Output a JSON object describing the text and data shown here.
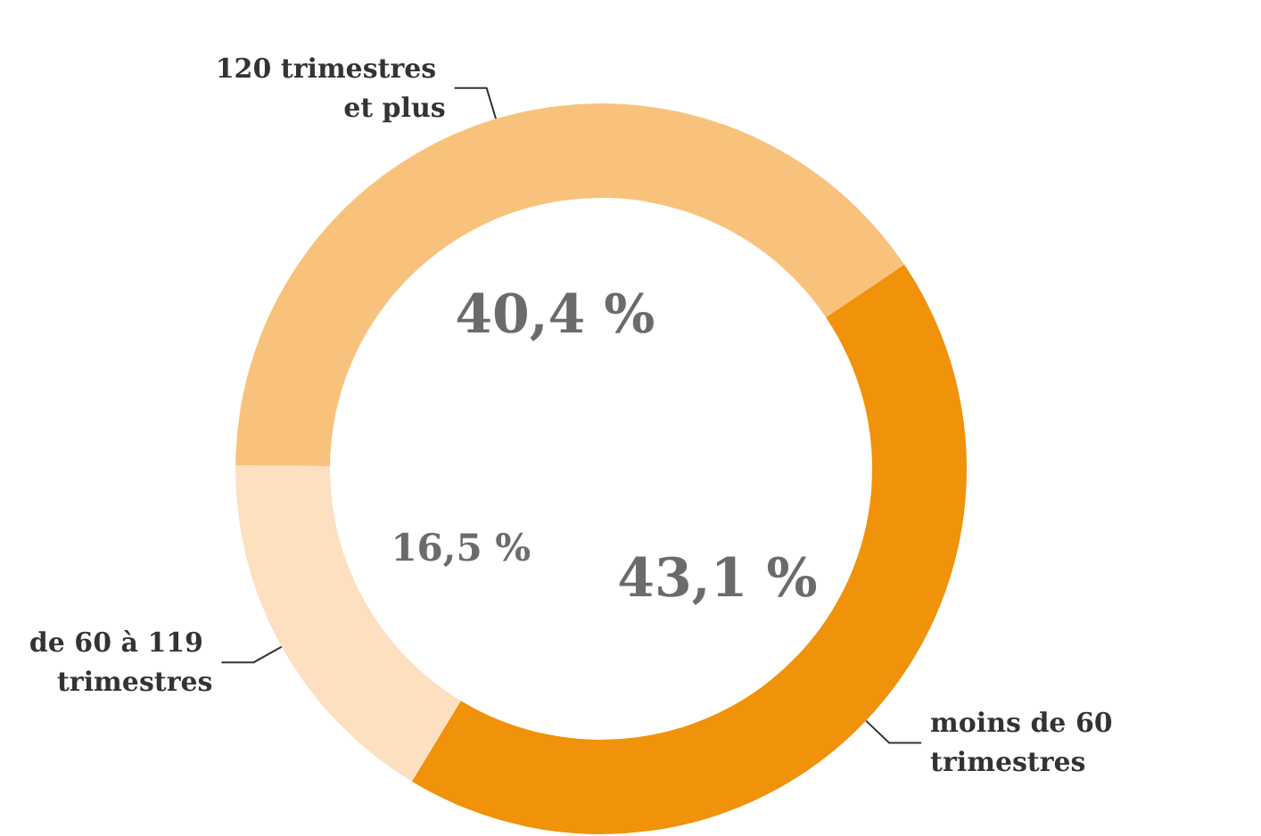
{
  "chart_data": {
    "type": "donut",
    "categories": [
      "moins de 60 trimestres",
      "de 60 à 119 trimestres",
      "120 trimestres et plus"
    ],
    "values": [
      43.1,
      16.5,
      40.4
    ],
    "colors": [
      "#f0920a",
      "#fde0bf",
      "#f9c27c"
    ],
    "value_labels": [
      "43,1 %",
      "16,5 %",
      "40,4 %"
    ],
    "legend": false
  }
}
